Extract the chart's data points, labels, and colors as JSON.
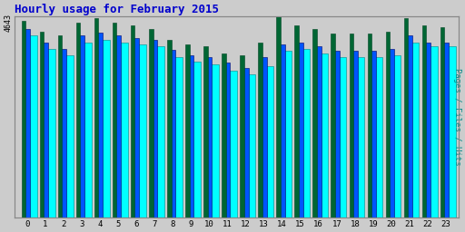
{
  "title": "Hourly usage for February 2015",
  "title_color": "#0000cc",
  "title_fontsize": 9,
  "hours": [
    0,
    1,
    2,
    3,
    4,
    5,
    6,
    7,
    8,
    9,
    10,
    11,
    12,
    13,
    14,
    15,
    16,
    17,
    18,
    19,
    20,
    21,
    22,
    23
  ],
  "pages": [
    4200,
    3900,
    3750,
    4050,
    4100,
    4050,
    4000,
    3950,
    3700,
    3600,
    3550,
    3400,
    3300,
    3500,
    3850,
    3900,
    3800,
    3700,
    3700,
    3700,
    3750,
    4050,
    3950,
    3950
  ],
  "files": [
    4350,
    4050,
    3900,
    4200,
    4280,
    4200,
    4150,
    4100,
    3870,
    3750,
    3700,
    3580,
    3450,
    3700,
    4000,
    4050,
    3950,
    3850,
    3850,
    3850,
    3900,
    4200,
    4050,
    4050
  ],
  "hits": [
    4550,
    4300,
    4200,
    4500,
    4600,
    4500,
    4450,
    4350,
    4100,
    4000,
    3950,
    3800,
    3750,
    4050,
    4643,
    4450,
    4350,
    4250,
    4250,
    4250,
    4300,
    4600,
    4450,
    4400
  ],
  "ymin": 0,
  "ymax": 4643,
  "ytick_label": "4643",
  "ylabel_right": "Pages / Files / Hits",
  "bar_width": 0.25,
  "color_pages": "#00ffff",
  "color_files": "#0055ff",
  "color_hits": "#006633",
  "bg_color": "#cccccc",
  "plot_bg_color": "#cccccc",
  "border_color": "#888888",
  "grid_color": "#aaaaaa"
}
